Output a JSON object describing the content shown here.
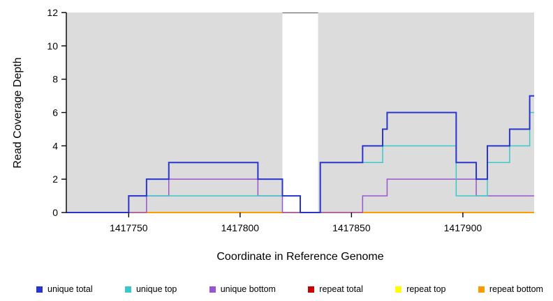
{
  "chart_data": {
    "type": "line",
    "subtype": "step-coverage",
    "title": "",
    "xlabel": "Coordinate in Reference Genome",
    "ylabel": "Read Coverage Depth",
    "xlim": [
      1417722,
      1417932
    ],
    "ylim": [
      0,
      12
    ],
    "x_ticks": [
      1417750,
      1417800,
      1417850,
      1417900
    ],
    "y_ticks": [
      0,
      2,
      4,
      6,
      8,
      10,
      12
    ],
    "grid": false,
    "legend_position": "bottom",
    "plot_background": "#ffffff",
    "shaded_regions": [
      {
        "name": "covered-region-1",
        "from": 1417722,
        "to": 1417819,
        "color": "#dcdcdc"
      },
      {
        "name": "covered-region-2",
        "from": 1417835,
        "to": 1417932,
        "color": "#dcdcdc"
      }
    ],
    "gap_region": {
      "from": 1417819,
      "to": 1417835,
      "color": "#ffffff",
      "top_border": "#555555"
    },
    "series": [
      {
        "name": "repeat total",
        "color": "#cc0000",
        "width": 1.4,
        "points": [
          [
            1417722,
            0
          ],
          [
            1417932,
            0
          ]
        ]
      },
      {
        "name": "repeat top",
        "color": "#ffff00",
        "width": 1.4,
        "points": [
          [
            1417722,
            0
          ],
          [
            1417932,
            0
          ]
        ]
      },
      {
        "name": "repeat bottom",
        "color": "#ff9900",
        "width": 2,
        "points": [
          [
            1417722,
            0
          ],
          [
            1417932,
            0
          ]
        ]
      },
      {
        "name": "unique bottom",
        "color": "#9955cc",
        "width": 1.5,
        "points": [
          [
            1417722,
            0
          ],
          [
            1417758,
            1
          ],
          [
            1417768,
            2
          ],
          [
            1417808,
            1
          ],
          [
            1417819,
            0
          ],
          [
            1417855,
            1
          ],
          [
            1417866,
            2
          ],
          [
            1417906,
            1
          ]
        ]
      },
      {
        "name": "unique top",
        "color": "#3cc8c8",
        "width": 1.5,
        "points": [
          [
            1417722,
            0
          ],
          [
            1417750,
            1
          ],
          [
            1417827,
            0
          ],
          [
            1417836,
            3
          ],
          [
            1417864,
            4
          ],
          [
            1417897,
            1
          ],
          [
            1417911,
            3
          ],
          [
            1417921,
            4
          ],
          [
            1417930,
            6
          ]
        ]
      },
      {
        "name": "unique total",
        "color": "#2a35cc",
        "width": 2,
        "points": [
          [
            1417722,
            0
          ],
          [
            1417750,
            1
          ],
          [
            1417758,
            2
          ],
          [
            1417768,
            3
          ],
          [
            1417808,
            2
          ],
          [
            1417819,
            1
          ],
          [
            1417827,
            0
          ],
          [
            1417836,
            3
          ],
          [
            1417855,
            4
          ],
          [
            1417864,
            5
          ],
          [
            1417866,
            6
          ],
          [
            1417897,
            3
          ],
          [
            1417906,
            2
          ],
          [
            1417911,
            4
          ],
          [
            1417921,
            5
          ],
          [
            1417930,
            7
          ]
        ]
      }
    ],
    "legend": [
      {
        "label": "unique total",
        "color": "#2a35cc"
      },
      {
        "label": "unique top",
        "color": "#3cc8c8"
      },
      {
        "label": "unique bottom",
        "color": "#9955cc"
      },
      {
        "label": "repeat total",
        "color": "#cc0000"
      },
      {
        "label": "repeat top",
        "color": "#ffff00"
      },
      {
        "label": "repeat bottom",
        "color": "#ff9900"
      }
    ]
  }
}
